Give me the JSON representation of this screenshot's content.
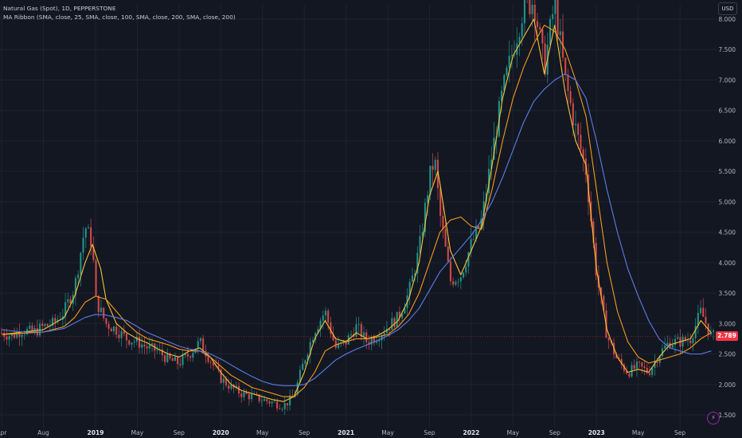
{
  "header": {
    "symbol": "Natural Gas (Spot), 1D, PEPPERSTONE",
    "indicator": "MA Ribbon (SMA, close, 25, SMA, close, 100, SMA, close, 200, SMA, close, 200)",
    "currency": "USD",
    "last_price": "2.789"
  },
  "chart_data": {
    "type": "line",
    "y_ticks": [
      "8.000",
      "7.500",
      "7.000",
      "6.500",
      "6.000",
      "5.500",
      "5.000",
      "4.500",
      "4.000",
      "3.500",
      "3.000",
      "2.500",
      "2.000",
      "1.500"
    ],
    "ylim": [
      1.5,
      8.0
    ],
    "x_ticks": [
      {
        "label": "Apr",
        "t": 0.0,
        "year": false
      },
      {
        "label": "Aug",
        "t": 4.0,
        "year": false
      },
      {
        "label": "2019",
        "t": 9.0,
        "year": true
      },
      {
        "label": "May",
        "t": 13.0,
        "year": false
      },
      {
        "label": "Sep",
        "t": 17.0,
        "year": false
      },
      {
        "label": "2020",
        "t": 21.0,
        "year": true
      },
      {
        "label": "May",
        "t": 25.0,
        "year": false
      },
      {
        "label": "Sep",
        "t": 29.0,
        "year": false
      },
      {
        "label": "2021",
        "t": 33.0,
        "year": true
      },
      {
        "label": "May",
        "t": 37.0,
        "year": false
      },
      {
        "label": "Sep",
        "t": 41.0,
        "year": false
      },
      {
        "label": "2022",
        "t": 45.0,
        "year": true
      },
      {
        "label": "May",
        "t": 49.0,
        "year": false
      },
      {
        "label": "Sep",
        "t": 53.0,
        "year": false
      },
      {
        "label": "2023",
        "t": 57.0,
        "year": true
      },
      {
        "label": "May",
        "t": 61.0,
        "year": false
      },
      {
        "label": "Sep",
        "t": 65.0,
        "year": false
      }
    ],
    "xlim": [
      0,
      68.5
    ],
    "price": [
      [
        0,
        2.85
      ],
      [
        1,
        2.8
      ],
      [
        2,
        2.9
      ],
      [
        3,
        2.85
      ],
      [
        4,
        2.95
      ],
      [
        5,
        3.0
      ],
      [
        6,
        3.2
      ],
      [
        7,
        3.6
      ],
      [
        8,
        4.6
      ],
      [
        8.7,
        4.3
      ],
      [
        9,
        3.4
      ],
      [
        10,
        3.0
      ],
      [
        11,
        2.9
      ],
      [
        12,
        2.75
      ],
      [
        13,
        2.7
      ],
      [
        14,
        2.6
      ],
      [
        15,
        2.55
      ],
      [
        16,
        2.4
      ],
      [
        17,
        2.35
      ],
      [
        18,
        2.5
      ],
      [
        19,
        2.7
      ],
      [
        20,
        2.4
      ],
      [
        21,
        2.1
      ],
      [
        22,
        1.95
      ],
      [
        23,
        1.85
      ],
      [
        24,
        1.8
      ],
      [
        25,
        1.75
      ],
      [
        26,
        1.7
      ],
      [
        27,
        1.65
      ],
      [
        28,
        1.8
      ],
      [
        29,
        2.4
      ],
      [
        30,
        2.9
      ],
      [
        31,
        3.2
      ],
      [
        32,
        2.6
      ],
      [
        33,
        2.7
      ],
      [
        34,
        2.95
      ],
      [
        35,
        2.7
      ],
      [
        36,
        2.8
      ],
      [
        37,
        2.95
      ],
      [
        38,
        3.1
      ],
      [
        39,
        3.5
      ],
      [
        40,
        4.2
      ],
      [
        41,
        5.4
      ],
      [
        41.5,
        5.7
      ],
      [
        42,
        4.8
      ],
      [
        43,
        3.7
      ],
      [
        44,
        3.8
      ],
      [
        45,
        4.3
      ],
      [
        46,
        4.7
      ],
      [
        47,
        5.8
      ],
      [
        48,
        6.8
      ],
      [
        49,
        7.5
      ],
      [
        50,
        8.2
      ],
      [
        51,
        8.3
      ],
      [
        52,
        7.2
      ],
      [
        53,
        8.3
      ],
      [
        54,
        7.0
      ],
      [
        55,
        6.2
      ],
      [
        56,
        5.5
      ],
      [
        57,
        3.8
      ],
      [
        58,
        2.8
      ],
      [
        59,
        2.4
      ],
      [
        60,
        2.2
      ],
      [
        61,
        2.3
      ],
      [
        62,
        2.2
      ],
      [
        63,
        2.5
      ],
      [
        64,
        2.7
      ],
      [
        65,
        2.7
      ],
      [
        66,
        2.75
      ],
      [
        67,
        3.2
      ],
      [
        68,
        2.79
      ]
    ],
    "series": [
      {
        "values": [
          [
            0,
            2.82
          ],
          [
            2,
            2.86
          ],
          [
            4,
            2.9
          ],
          [
            6,
            3.1
          ],
          [
            7,
            3.45
          ],
          [
            8,
            4.0
          ],
          [
            8.7,
            4.3
          ],
          [
            9.5,
            3.9
          ],
          [
            10,
            3.4
          ],
          [
            11,
            3.0
          ],
          [
            12,
            2.85
          ],
          [
            13,
            2.75
          ],
          [
            14,
            2.68
          ],
          [
            15,
            2.58
          ],
          [
            16,
            2.5
          ],
          [
            17,
            2.45
          ],
          [
            18,
            2.55
          ],
          [
            19,
            2.6
          ],
          [
            20,
            2.45
          ],
          [
            21,
            2.2
          ],
          [
            22,
            2.0
          ],
          [
            23,
            1.9
          ],
          [
            24,
            1.85
          ],
          [
            25,
            1.8
          ],
          [
            26,
            1.75
          ],
          [
            27,
            1.72
          ],
          [
            28,
            1.8
          ],
          [
            29,
            2.2
          ],
          [
            30,
            2.75
          ],
          [
            31,
            3.05
          ],
          [
            32,
            2.75
          ],
          [
            33,
            2.7
          ],
          [
            34,
            2.85
          ],
          [
            35,
            2.75
          ],
          [
            36,
            2.8
          ],
          [
            37,
            2.9
          ],
          [
            38,
            3.05
          ],
          [
            39,
            3.4
          ],
          [
            40,
            4.0
          ],
          [
            41,
            5.1
          ],
          [
            41.8,
            5.5
          ],
          [
            42,
            5.3
          ],
          [
            43,
            4.2
          ],
          [
            44,
            3.8
          ],
          [
            45,
            4.2
          ],
          [
            46,
            4.6
          ],
          [
            47,
            5.6
          ],
          [
            48,
            6.7
          ],
          [
            49,
            7.4
          ],
          [
            50,
            7.7
          ],
          [
            51,
            8.0
          ],
          [
            52,
            7.1
          ],
          [
            53,
            7.9
          ],
          [
            54,
            6.8
          ],
          [
            55,
            6.0
          ],
          [
            56,
            5.6
          ],
          [
            57,
            3.9
          ],
          [
            58,
            2.9
          ],
          [
            59,
            2.45
          ],
          [
            60,
            2.2
          ],
          [
            61,
            2.25
          ],
          [
            62,
            2.2
          ],
          [
            63,
            2.45
          ],
          [
            64,
            2.65
          ],
          [
            65,
            2.7
          ],
          [
            66,
            2.75
          ],
          [
            67,
            3.05
          ],
          [
            68,
            2.85
          ]
        ]
      },
      {
        "values": [
          [
            0,
            2.82
          ],
          [
            2,
            2.84
          ],
          [
            4,
            2.86
          ],
          [
            6,
            2.95
          ],
          [
            7,
            3.1
          ],
          [
            8,
            3.35
          ],
          [
            9,
            3.45
          ],
          [
            10,
            3.4
          ],
          [
            11,
            3.2
          ],
          [
            12,
            3.0
          ],
          [
            13,
            2.85
          ],
          [
            14,
            2.75
          ],
          [
            15,
            2.7
          ],
          [
            16,
            2.65
          ],
          [
            17,
            2.58
          ],
          [
            18,
            2.55
          ],
          [
            19,
            2.55
          ],
          [
            20,
            2.45
          ],
          [
            21,
            2.3
          ],
          [
            22,
            2.15
          ],
          [
            23,
            2.05
          ],
          [
            24,
            1.95
          ],
          [
            25,
            1.9
          ],
          [
            26,
            1.85
          ],
          [
            27,
            1.8
          ],
          [
            28,
            1.8
          ],
          [
            29,
            1.95
          ],
          [
            30,
            2.2
          ],
          [
            31,
            2.55
          ],
          [
            32,
            2.65
          ],
          [
            33,
            2.7
          ],
          [
            34,
            2.75
          ],
          [
            35,
            2.75
          ],
          [
            36,
            2.78
          ],
          [
            37,
            2.82
          ],
          [
            38,
            2.95
          ],
          [
            39,
            3.15
          ],
          [
            40,
            3.5
          ],
          [
            41,
            4.0
          ],
          [
            42,
            4.5
          ],
          [
            43,
            4.7
          ],
          [
            44,
            4.75
          ],
          [
            45,
            4.6
          ],
          [
            46,
            4.55
          ],
          [
            47,
            5.2
          ],
          [
            48,
            6.0
          ],
          [
            49,
            6.7
          ],
          [
            50,
            7.2
          ],
          [
            51,
            7.6
          ],
          [
            52,
            7.9
          ],
          [
            53,
            7.8
          ],
          [
            54,
            7.5
          ],
          [
            55,
            7.0
          ],
          [
            56,
            6.4
          ],
          [
            57,
            5.2
          ],
          [
            58,
            4.0
          ],
          [
            59,
            3.2
          ],
          [
            60,
            2.7
          ],
          [
            61,
            2.45
          ],
          [
            62,
            2.35
          ],
          [
            63,
            2.4
          ],
          [
            64,
            2.45
          ],
          [
            65,
            2.5
          ],
          [
            66,
            2.6
          ],
          [
            67,
            2.75
          ],
          [
            68,
            2.85
          ]
        ]
      },
      {
        "values": [
          [
            0,
            2.9
          ],
          [
            2,
            2.86
          ],
          [
            4,
            2.86
          ],
          [
            6,
            2.92
          ],
          [
            8,
            3.1
          ],
          [
            9,
            3.15
          ],
          [
            10,
            3.14
          ],
          [
            11,
            3.1
          ],
          [
            12,
            3.05
          ],
          [
            13,
            2.95
          ],
          [
            14,
            2.85
          ],
          [
            15,
            2.78
          ],
          [
            16,
            2.7
          ],
          [
            17,
            2.63
          ],
          [
            18,
            2.58
          ],
          [
            19,
            2.55
          ],
          [
            20,
            2.5
          ],
          [
            21,
            2.42
          ],
          [
            22,
            2.32
          ],
          [
            23,
            2.22
          ],
          [
            24,
            2.13
          ],
          [
            25,
            2.05
          ],
          [
            26,
            2.0
          ],
          [
            27,
            1.98
          ],
          [
            28,
            1.98
          ],
          [
            29,
            2.0
          ],
          [
            30,
            2.1
          ],
          [
            31,
            2.25
          ],
          [
            32,
            2.4
          ],
          [
            33,
            2.5
          ],
          [
            34,
            2.58
          ],
          [
            35,
            2.65
          ],
          [
            36,
            2.72
          ],
          [
            37,
            2.8
          ],
          [
            38,
            2.9
          ],
          [
            39,
            3.05
          ],
          [
            40,
            3.25
          ],
          [
            41,
            3.55
          ],
          [
            42,
            3.85
          ],
          [
            43,
            4.05
          ],
          [
            44,
            4.25
          ],
          [
            45,
            4.45
          ],
          [
            46,
            4.7
          ],
          [
            47,
            5.0
          ],
          [
            48,
            5.4
          ],
          [
            49,
            5.85
          ],
          [
            50,
            6.3
          ],
          [
            51,
            6.65
          ],
          [
            52,
            6.85
          ],
          [
            53,
            7.0
          ],
          [
            54,
            7.1
          ],
          [
            55,
            7.0
          ],
          [
            56,
            6.7
          ],
          [
            57,
            6.0
          ],
          [
            58,
            5.2
          ],
          [
            59,
            4.5
          ],
          [
            60,
            3.9
          ],
          [
            61,
            3.45
          ],
          [
            62,
            3.05
          ],
          [
            63,
            2.75
          ],
          [
            64,
            2.6
          ],
          [
            65,
            2.55
          ],
          [
            66,
            2.5
          ],
          [
            67,
            2.5
          ],
          [
            68,
            2.55
          ]
        ]
      }
    ],
    "colors": {
      "bg": "#131722",
      "grid": "#1f2330",
      "up": "#26a69a",
      "down": "#ef5350",
      "ma25": "#f7c232",
      "ma100": "#f59a1c",
      "ma200": "#5b7ee5",
      "price_line": "#f23645"
    },
    "last_price_value": 2.789
  }
}
